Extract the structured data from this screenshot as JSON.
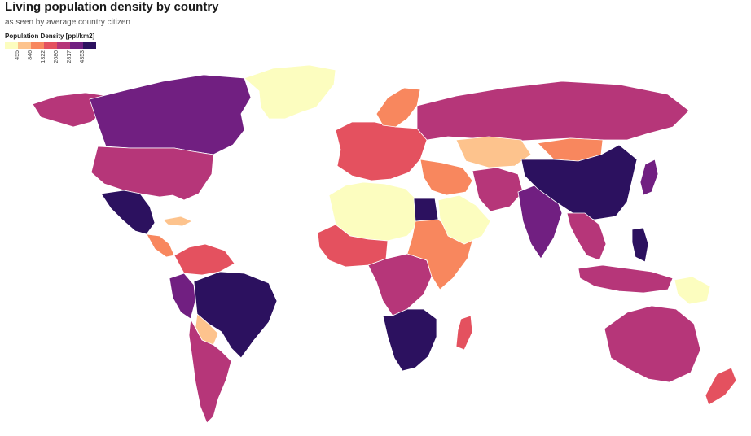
{
  "header": {
    "title": "Living population density by country",
    "subtitle": "as seen by average country citizen"
  },
  "legend": {
    "title": "Population Density [ppl/km2]",
    "ticks": [
      "455",
      "846",
      "1322",
      "2080",
      "2817",
      "4353"
    ],
    "colors": [
      "#fcfdbf",
      "#fdc38d",
      "#f8875e",
      "#e4515f",
      "#b63679",
      "#711f81",
      "#2c115f"
    ]
  },
  "colors": {
    "ocean": "#ffffff",
    "border": "#ffffff"
  },
  "regions": [
    {
      "name": "greenland",
      "level": 0
    },
    {
      "name": "canada",
      "level": 5
    },
    {
      "name": "alaska",
      "level": 4
    },
    {
      "name": "usa",
      "level": 4
    },
    {
      "name": "mexico",
      "level": 6
    },
    {
      "name": "central-america",
      "level": 2
    },
    {
      "name": "caribbean",
      "level": 1
    },
    {
      "name": "colombia-venezuela",
      "level": 3
    },
    {
      "name": "brazil",
      "level": 6
    },
    {
      "name": "peru",
      "level": 5
    },
    {
      "name": "bolivia",
      "level": 1
    },
    {
      "name": "argentina-chile",
      "level": 4
    },
    {
      "name": "north-africa",
      "level": 0
    },
    {
      "name": "egypt",
      "level": 6
    },
    {
      "name": "west-africa",
      "level": 3
    },
    {
      "name": "central-africa",
      "level": 4
    },
    {
      "name": "east-africa",
      "level": 2
    },
    {
      "name": "southern-africa",
      "level": 6
    },
    {
      "name": "madagascar",
      "level": 3
    },
    {
      "name": "europe",
      "level": 3
    },
    {
      "name": "scandinavia",
      "level": 2
    },
    {
      "name": "russia",
      "level": 4
    },
    {
      "name": "kazakhstan",
      "level": 1
    },
    {
      "name": "middle-east",
      "level": 2
    },
    {
      "name": "arabia",
      "level": 0
    },
    {
      "name": "iran-pakistan",
      "level": 4
    },
    {
      "name": "india",
      "level": 5
    },
    {
      "name": "china",
      "level": 6
    },
    {
      "name": "mongolia",
      "level": 2
    },
    {
      "name": "southeast-asia",
      "level": 4
    },
    {
      "name": "japan",
      "level": 5
    },
    {
      "name": "indonesia",
      "level": 4
    },
    {
      "name": "philippines",
      "level": 6
    },
    {
      "name": "papua",
      "level": 0
    },
    {
      "name": "australia",
      "level": 4
    },
    {
      "name": "new-zealand",
      "level": 3
    }
  ]
}
